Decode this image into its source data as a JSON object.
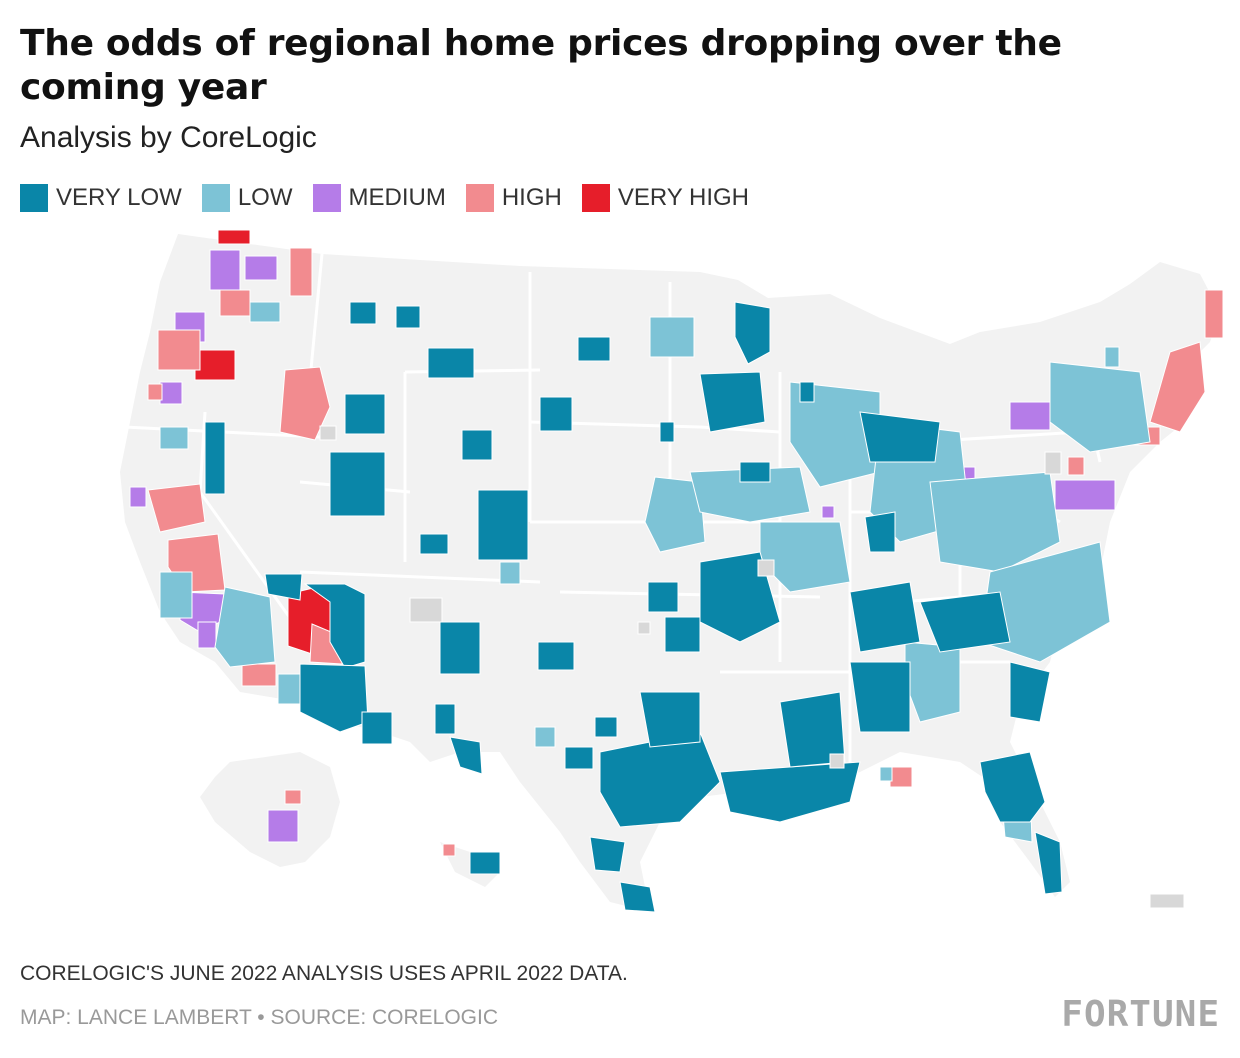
{
  "title": "The odds of regional home prices dropping over the coming year",
  "subtitle": "Analysis by CoreLogic",
  "legend": [
    {
      "label": "VERY LOW",
      "color": "#0a86a8"
    },
    {
      "label": "LOW",
      "color": "#7dc3d6"
    },
    {
      "label": "MEDIUM",
      "color": "#b57ce8"
    },
    {
      "label": "HIGH",
      "color": "#f28b8f"
    },
    {
      "label": "VERY HIGH",
      "color": "#e61e2a"
    }
  ],
  "map_colors": {
    "land": "#f2f2f2",
    "border": "#ffffff",
    "no_data": "#d8d8d8"
  },
  "note": "CORELOGIC'S JUNE 2022 ANALYSIS USES APRIL 2022 DATA.",
  "credit": "MAP: LANCE LAMBERT • SOURCE: CORELOGIC",
  "logo": "FORTUNE"
}
